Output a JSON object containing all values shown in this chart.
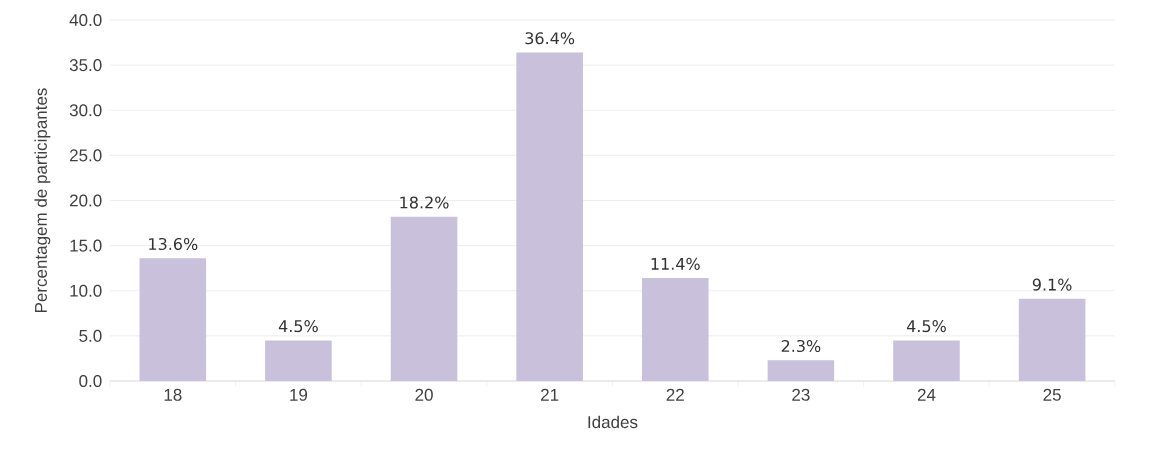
{
  "chart_data": {
    "type": "bar",
    "xlabel": "Idades",
    "ylabel": "Percentagem de participantes",
    "categories": [
      "18",
      "19",
      "20",
      "21",
      "22",
      "23",
      "24",
      "25"
    ],
    "values": [
      13.6,
      4.5,
      18.2,
      36.4,
      11.4,
      2.3,
      4.5,
      9.1
    ],
    "value_labels": [
      "13.6%",
      "4.5%",
      "18.2%",
      "36.4%",
      "11.4%",
      "2.3%",
      "4.5%",
      "9.1%"
    ],
    "color": "#c9c0dc",
    "ylim": [
      0,
      40
    ],
    "yticks": [
      {
        "value": 0,
        "label": "0.0"
      },
      {
        "value": 5,
        "label": "5.0"
      },
      {
        "value": 10,
        "label": "10.0"
      },
      {
        "value": 15,
        "label": "15.0"
      },
      {
        "value": 20,
        "label": "20.0"
      },
      {
        "value": 25,
        "label": "25.0"
      },
      {
        "value": 30,
        "label": "30.0"
      },
      {
        "value": 35,
        "label": "35.0"
      },
      {
        "value": 40,
        "label": "40.0"
      }
    ],
    "grid": "y"
  }
}
